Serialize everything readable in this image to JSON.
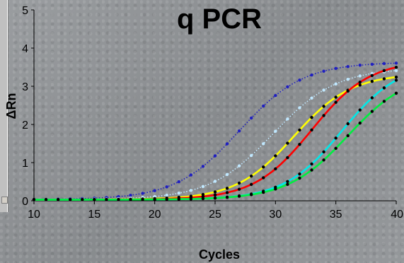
{
  "chart_data": {
    "type": "line",
    "title": "q PCR",
    "xlabel": "Cycles",
    "ylabel": "ΔRn",
    "xlim": [
      10,
      40
    ],
    "ylim": [
      0,
      5
    ],
    "xticks": [
      "10",
      "15",
      "20",
      "25",
      "30",
      "35",
      "40"
    ],
    "yticks": [
      "0",
      "1",
      "2",
      "3",
      "4",
      "5"
    ],
    "grid": false,
    "series": [
      {
        "color": "#2020c0",
        "style": "dotted",
        "mid": 27,
        "k": 0.38,
        "max": 3.6
      },
      {
        "color": "#c0e8ff",
        "style": "dotted",
        "mid": 29.8,
        "k": 0.38,
        "max": 3.45
      },
      {
        "color": "#ffff00",
        "style": "solid",
        "mid": 31.5,
        "k": 0.42,
        "max": 3.3
      },
      {
        "color": "#ff0000",
        "style": "solid",
        "mid": 33,
        "k": 0.42,
        "max": 3.65
      },
      {
        "color": "#00e8e8",
        "style": "solid",
        "mid": 35.5,
        "k": 0.42,
        "max": 3.6
      },
      {
        "color": "#00ee40",
        "style": "solid",
        "mid": 36,
        "k": 0.4,
        "max": 3.35
      }
    ]
  }
}
